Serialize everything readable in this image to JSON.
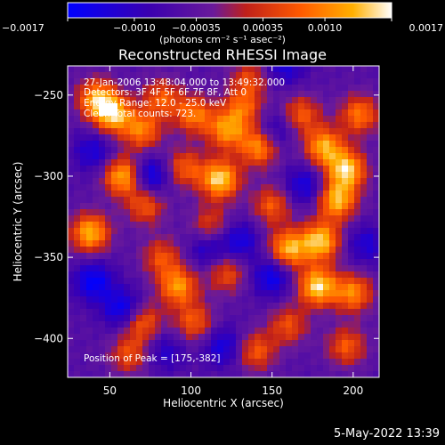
{
  "chart_data": {
    "type": "heatmap",
    "title": "Reconstructed RHESSI Image",
    "xlabel": "Heliocentric X (arcsec)",
    "ylabel": "Heliocentric Y (arcsec)",
    "xlim": [
      24,
      216
    ],
    "ylim": [
      -424,
      -232
    ],
    "x_ticks": [
      50,
      100,
      150,
      200
    ],
    "y_ticks": [
      -250,
      -300,
      -350,
      -400
    ],
    "colorbar": {
      "ticks": [
        -0.0017,
        -0.001,
        -0.00035,
        0.00035,
        0.001,
        0.0017
      ],
      "tick_labels": [
        "−0.0017",
        "−0.0010",
        "−0.00035",
        "0.00035",
        "0.0010",
        "0.0017"
      ],
      "range": [
        -0.0017,
        0.0017
      ],
      "unit_label": "(photons cm⁻² s⁻¹ asec⁻²)",
      "colors": [
        "#0000ff",
        "#3a00b0",
        "#6a1a9a",
        "#c0201a",
        "#ff5a00",
        "#ffb000",
        "#ffffff"
      ]
    },
    "peak": {
      "x": 175,
      "y": -382
    },
    "annotations": [
      "27-Jan-2006 13:48:04.000 to 13:49:32.000",
      "Detectors: 3F 4F 5F 6F 7F 8F, Att 0",
      "Energy Range: 12.0 - 25.0 keV",
      "Clean    Total counts: 723.",
      "Position of Peak = [175,-382]"
    ],
    "hot_spots": [
      {
        "x": 42,
        "y": -252,
        "v": 0.75
      },
      {
        "x": 52,
        "y": -262,
        "v": 0.85
      },
      {
        "x": 70,
        "y": -272,
        "v": 0.65
      },
      {
        "x": 82,
        "y": -252,
        "v": 0.55
      },
      {
        "x": 102,
        "y": -262,
        "v": 0.65
      },
      {
        "x": 122,
        "y": -272,
        "v": 0.7
      },
      {
        "x": 132,
        "y": -258,
        "v": 0.55
      },
      {
        "x": 142,
        "y": -282,
        "v": 0.75
      },
      {
        "x": 118,
        "y": -302,
        "v": 0.95
      },
      {
        "x": 96,
        "y": -295,
        "v": 0.55
      },
      {
        "x": 58,
        "y": -300,
        "v": 0.85
      },
      {
        "x": 72,
        "y": -318,
        "v": 0.55
      },
      {
        "x": 182,
        "y": -282,
        "v": 0.8
      },
      {
        "x": 196,
        "y": -296,
        "v": 0.9
      },
      {
        "x": 204,
        "y": -262,
        "v": 0.65
      },
      {
        "x": 168,
        "y": -262,
        "v": 0.55
      },
      {
        "x": 150,
        "y": -318,
        "v": 0.55
      },
      {
        "x": 160,
        "y": -345,
        "v": 0.85
      },
      {
        "x": 180,
        "y": -340,
        "v": 0.9
      },
      {
        "x": 190,
        "y": -315,
        "v": 0.85
      },
      {
        "x": 178,
        "y": -368,
        "v": 0.95
      },
      {
        "x": 200,
        "y": -372,
        "v": 0.7
      },
      {
        "x": 38,
        "y": -335,
        "v": 0.85
      },
      {
        "x": 82,
        "y": -350,
        "v": 0.5
      },
      {
        "x": 92,
        "y": -368,
        "v": 0.75
      },
      {
        "x": 70,
        "y": -390,
        "v": 0.6
      },
      {
        "x": 102,
        "y": -390,
        "v": 0.55
      },
      {
        "x": 122,
        "y": -360,
        "v": 0.5
      },
      {
        "x": 140,
        "y": -408,
        "v": 0.55
      },
      {
        "x": 160,
        "y": -392,
        "v": 0.5
      },
      {
        "x": 196,
        "y": -405,
        "v": 0.55
      },
      {
        "x": 62,
        "y": -410,
        "v": 0.5
      },
      {
        "x": 112,
        "y": -330,
        "v": 0.45
      },
      {
        "x": 136,
        "y": -240,
        "v": 0.45
      }
    ],
    "cold_spots": [
      {
        "x": 75,
        "y": -300,
        "v": 0.7
      },
      {
        "x": 40,
        "y": -365,
        "v": 0.7
      },
      {
        "x": 58,
        "y": -382,
        "v": 0.7
      },
      {
        "x": 130,
        "y": -340,
        "v": 0.55
      },
      {
        "x": 150,
        "y": -362,
        "v": 0.65
      },
      {
        "x": 110,
        "y": -345,
        "v": 0.45
      },
      {
        "x": 158,
        "y": -232,
        "v": 0.5
      },
      {
        "x": 170,
        "y": -306,
        "v": 0.55
      },
      {
        "x": 40,
        "y": -285,
        "v": 0.5
      },
      {
        "x": 120,
        "y": -405,
        "v": 0.55
      },
      {
        "x": 152,
        "y": -272,
        "v": 0.45
      },
      {
        "x": 84,
        "y": -408,
        "v": 0.4
      },
      {
        "x": 208,
        "y": -342,
        "v": 0.45
      }
    ]
  },
  "footer": {
    "date": "5-May-2022 13:39"
  }
}
